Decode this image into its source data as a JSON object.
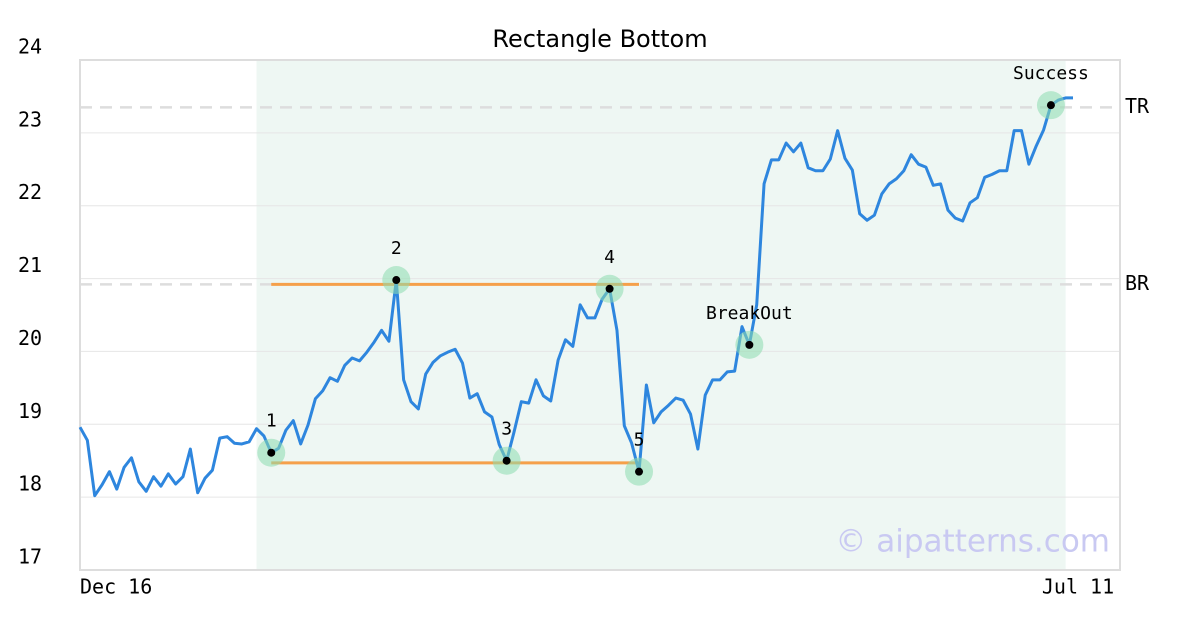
{
  "chart_data": {
    "type": "line",
    "title": "Rectangle Bottom",
    "watermark": "© aipatterns.com",
    "color": "#2e86de",
    "categories": [
      "Dec 16",
      null,
      null,
      null,
      null,
      null,
      null,
      null,
      null,
      null,
      null,
      null,
      null,
      null,
      null,
      null,
      null,
      null,
      null,
      null,
      null,
      null,
      null,
      null,
      null,
      null,
      null,
      null,
      null,
      null,
      null,
      null,
      null,
      null,
      null,
      null,
      null,
      null,
      null,
      null,
      null,
      null,
      null,
      null,
      null,
      null,
      null,
      null,
      null,
      null,
      null,
      null,
      null,
      null,
      null,
      null,
      null,
      null,
      null,
      null,
      null,
      null,
      null,
      null,
      null,
      null,
      null,
      null,
      null,
      null,
      null,
      null,
      null,
      null,
      null,
      null,
      null,
      null,
      null,
      null,
      null,
      null,
      null,
      null,
      null,
      null,
      null,
      null,
      null,
      null,
      null,
      null,
      null,
      null,
      null,
      null,
      null,
      null,
      null,
      null,
      null,
      null,
      null,
      null,
      null,
      null,
      null,
      null,
      null,
      null,
      null,
      null,
      null,
      null,
      null,
      null,
      null,
      null,
      null,
      null,
      null,
      null,
      null,
      null,
      null,
      null,
      null,
      null,
      null,
      null,
      null,
      null,
      null,
      null,
      null,
      "Jul 11"
    ],
    "values": [
      18.96,
      18.78,
      18.02,
      18.17,
      18.35,
      18.11,
      18.41,
      18.54,
      18.21,
      18.08,
      18.28,
      18.15,
      18.32,
      18.18,
      18.28,
      18.66,
      18.06,
      18.26,
      18.37,
      18.81,
      18.83,
      18.74,
      18.73,
      18.76,
      18.94,
      18.84,
      18.61,
      18.67,
      18.92,
      19.05,
      18.73,
      18.99,
      19.35,
      19.46,
      19.64,
      19.59,
      19.81,
      19.91,
      19.87,
      19.99,
      20.13,
      20.29,
      20.14,
      20.98,
      19.61,
      19.31,
      19.21,
      19.69,
      19.85,
      19.94,
      19.99,
      20.03,
      19.84,
      19.36,
      19.42,
      19.17,
      19.1,
      18.72,
      18.5,
      18.89,
      19.31,
      19.29,
      19.61,
      19.39,
      19.32,
      19.88,
      20.16,
      20.07,
      20.64,
      20.46,
      20.46,
      20.72,
      20.86,
      20.29,
      18.98,
      18.74,
      18.35,
      19.54,
      19.02,
      19.17,
      19.26,
      19.36,
      19.33,
      19.14,
      18.66,
      19.4,
      19.61,
      19.61,
      19.72,
      19.73,
      20.34,
      20.09,
      20.64,
      22.3,
      22.63,
      22.63,
      22.86,
      22.74,
      22.86,
      22.52,
      22.48,
      22.48,
      22.64,
      23.03,
      22.65,
      22.49,
      21.89,
      21.8,
      21.87,
      22.16,
      22.3,
      22.37,
      22.48,
      22.7,
      22.57,
      22.53,
      22.28,
      22.3,
      21.94,
      21.83,
      21.79,
      22.04,
      22.11,
      22.39,
      22.43,
      22.48,
      22.48,
      23.03,
      23.03,
      22.57,
      22.82,
      23.04,
      23.38,
      23.45,
      23.48,
      23.48
    ],
    "ylim": [
      17,
      24
    ],
    "yticks": [
      17,
      18,
      19,
      20,
      21,
      22,
      23,
      24
    ],
    "grid": true,
    "highlight": {
      "from": 24,
      "to": 134
    },
    "levels": [
      {
        "label": "TR",
        "value": 23.35
      },
      {
        "label": "BR",
        "value": 20.92
      }
    ],
    "pattern_lines": [
      {
        "value": 20.92,
        "from": 26,
        "to": 76
      },
      {
        "value": 18.47,
        "from": 26,
        "to": 76
      }
    ],
    "annotations": [
      {
        "text": "1",
        "index": 26
      },
      {
        "text": "2",
        "index": 43
      },
      {
        "text": "3",
        "index": 58
      },
      {
        "text": "4",
        "index": 72
      },
      {
        "text": "5",
        "index": 76
      },
      {
        "text": "BreakOut",
        "index": 91
      },
      {
        "text": "Success",
        "index": 132
      }
    ]
  }
}
